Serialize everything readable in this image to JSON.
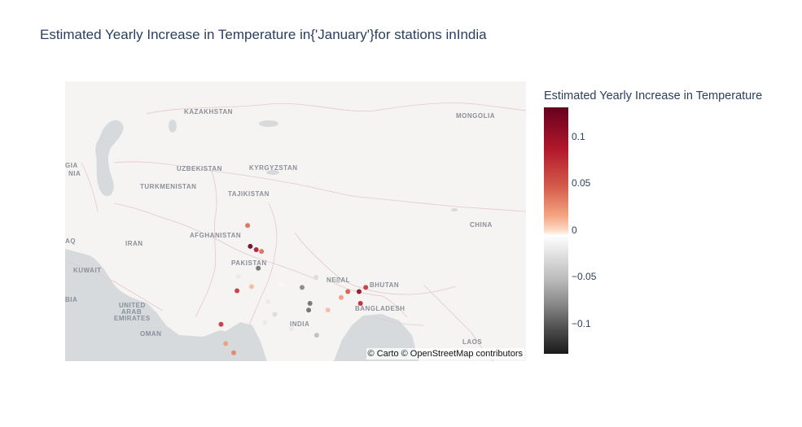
{
  "title": "Estimated Yearly Increase in Temperature in{'January'}for stations inIndia",
  "attribution": "© Carto © OpenStreetMap contributors",
  "colorbar": {
    "title": "Estimated Yearly Increase in Temperature",
    "ticks": [
      "0.1",
      "0.05",
      "0",
      "−0.05",
      "−0.1"
    ],
    "range": [
      -0.13,
      0.13
    ],
    "colorscale": "RdGy (reversed)",
    "colors": {
      "max": "#67001f",
      "mid": "#ffffff",
      "min": "#1a1a1a"
    }
  },
  "map": {
    "style": "carto-positron",
    "country_labels": [
      "KAZAKHSTAN",
      "MONGOLIA",
      "UZBEKISTAN",
      "KYRGYZSTAN",
      "TURKMENISTAN",
      "TAJIKISTAN",
      "CHINA",
      "AFGHANISTAN",
      "IRAN",
      "PAKISTAN",
      "NEPAL",
      "BHUTAN",
      "KUWAIT",
      "UNITED",
      "ARAB",
      "EMIRATES",
      "INDIA",
      "BANGLADESH",
      "OMAN",
      "LAOS",
      "GIA",
      "NIA",
      "AQ",
      "BIA"
    ]
  },
  "chart_data": {
    "type": "scatter",
    "title": "Estimated Yearly Increase in Temperature in{'January'}for stations inIndia",
    "colorbar_title": "Estimated Yearly Increase in Temperature",
    "value_range": [
      -0.13,
      0.13
    ],
    "points": [
      {
        "lon": 74.9,
        "lat": 34.1,
        "value": 0.04
      },
      {
        "lon": 75.3,
        "lat": 31.6,
        "value": 0.13
      },
      {
        "lon": 76.2,
        "lat": 31.2,
        "value": 0.09
      },
      {
        "lon": 77.0,
        "lat": 31.0,
        "value": 0.04
      },
      {
        "lon": 76.5,
        "lat": 29.0,
        "value": -0.09
      },
      {
        "lon": 73.3,
        "lat": 26.3,
        "value": 0.07
      },
      {
        "lon": 70.9,
        "lat": 22.3,
        "value": 0.07
      },
      {
        "lon": 83.1,
        "lat": 26.7,
        "value": -0.08
      },
      {
        "lon": 84.3,
        "lat": 24.8,
        "value": -0.09
      },
      {
        "lon": 84.1,
        "lat": 24.0,
        "value": -0.09
      },
      {
        "lon": 85.2,
        "lat": 27.9,
        "value": -0.03
      },
      {
        "lon": 90.0,
        "lat": 26.2,
        "value": 0.05
      },
      {
        "lon": 91.7,
        "lat": 26.2,
        "value": 0.11
      },
      {
        "lon": 92.7,
        "lat": 26.7,
        "value": 0.07
      },
      {
        "lon": 91.9,
        "lat": 24.8,
        "value": 0.08
      },
      {
        "lon": 71.6,
        "lat": 20.0,
        "value": 0.02
      },
      {
        "lon": 72.8,
        "lat": 18.9,
        "value": 0.03
      },
      {
        "lon": 85.3,
        "lat": 21.0,
        "value": -0.05
      },
      {
        "lon": 73.5,
        "lat": 28.0,
        "value": -0.02
      },
      {
        "lon": 78.0,
        "lat": 25.0,
        "value": -0.02
      },
      {
        "lon": 80.0,
        "lat": 27.0,
        "value": -0.01
      },
      {
        "lon": 79.0,
        "lat": 23.5,
        "value": -0.03
      },
      {
        "lon": 81.5,
        "lat": 21.8,
        "value": -0.02
      },
      {
        "lon": 75.5,
        "lat": 26.8,
        "value": 0.01
      },
      {
        "lon": 77.5,
        "lat": 22.5,
        "value": -0.02
      },
      {
        "lon": 88.5,
        "lat": 27.5,
        "value": -0.04
      },
      {
        "lon": 87.0,
        "lat": 24.0,
        "value": 0.01
      },
      {
        "lon": 89.0,
        "lat": 25.5,
        "value": 0.02
      }
    ]
  }
}
